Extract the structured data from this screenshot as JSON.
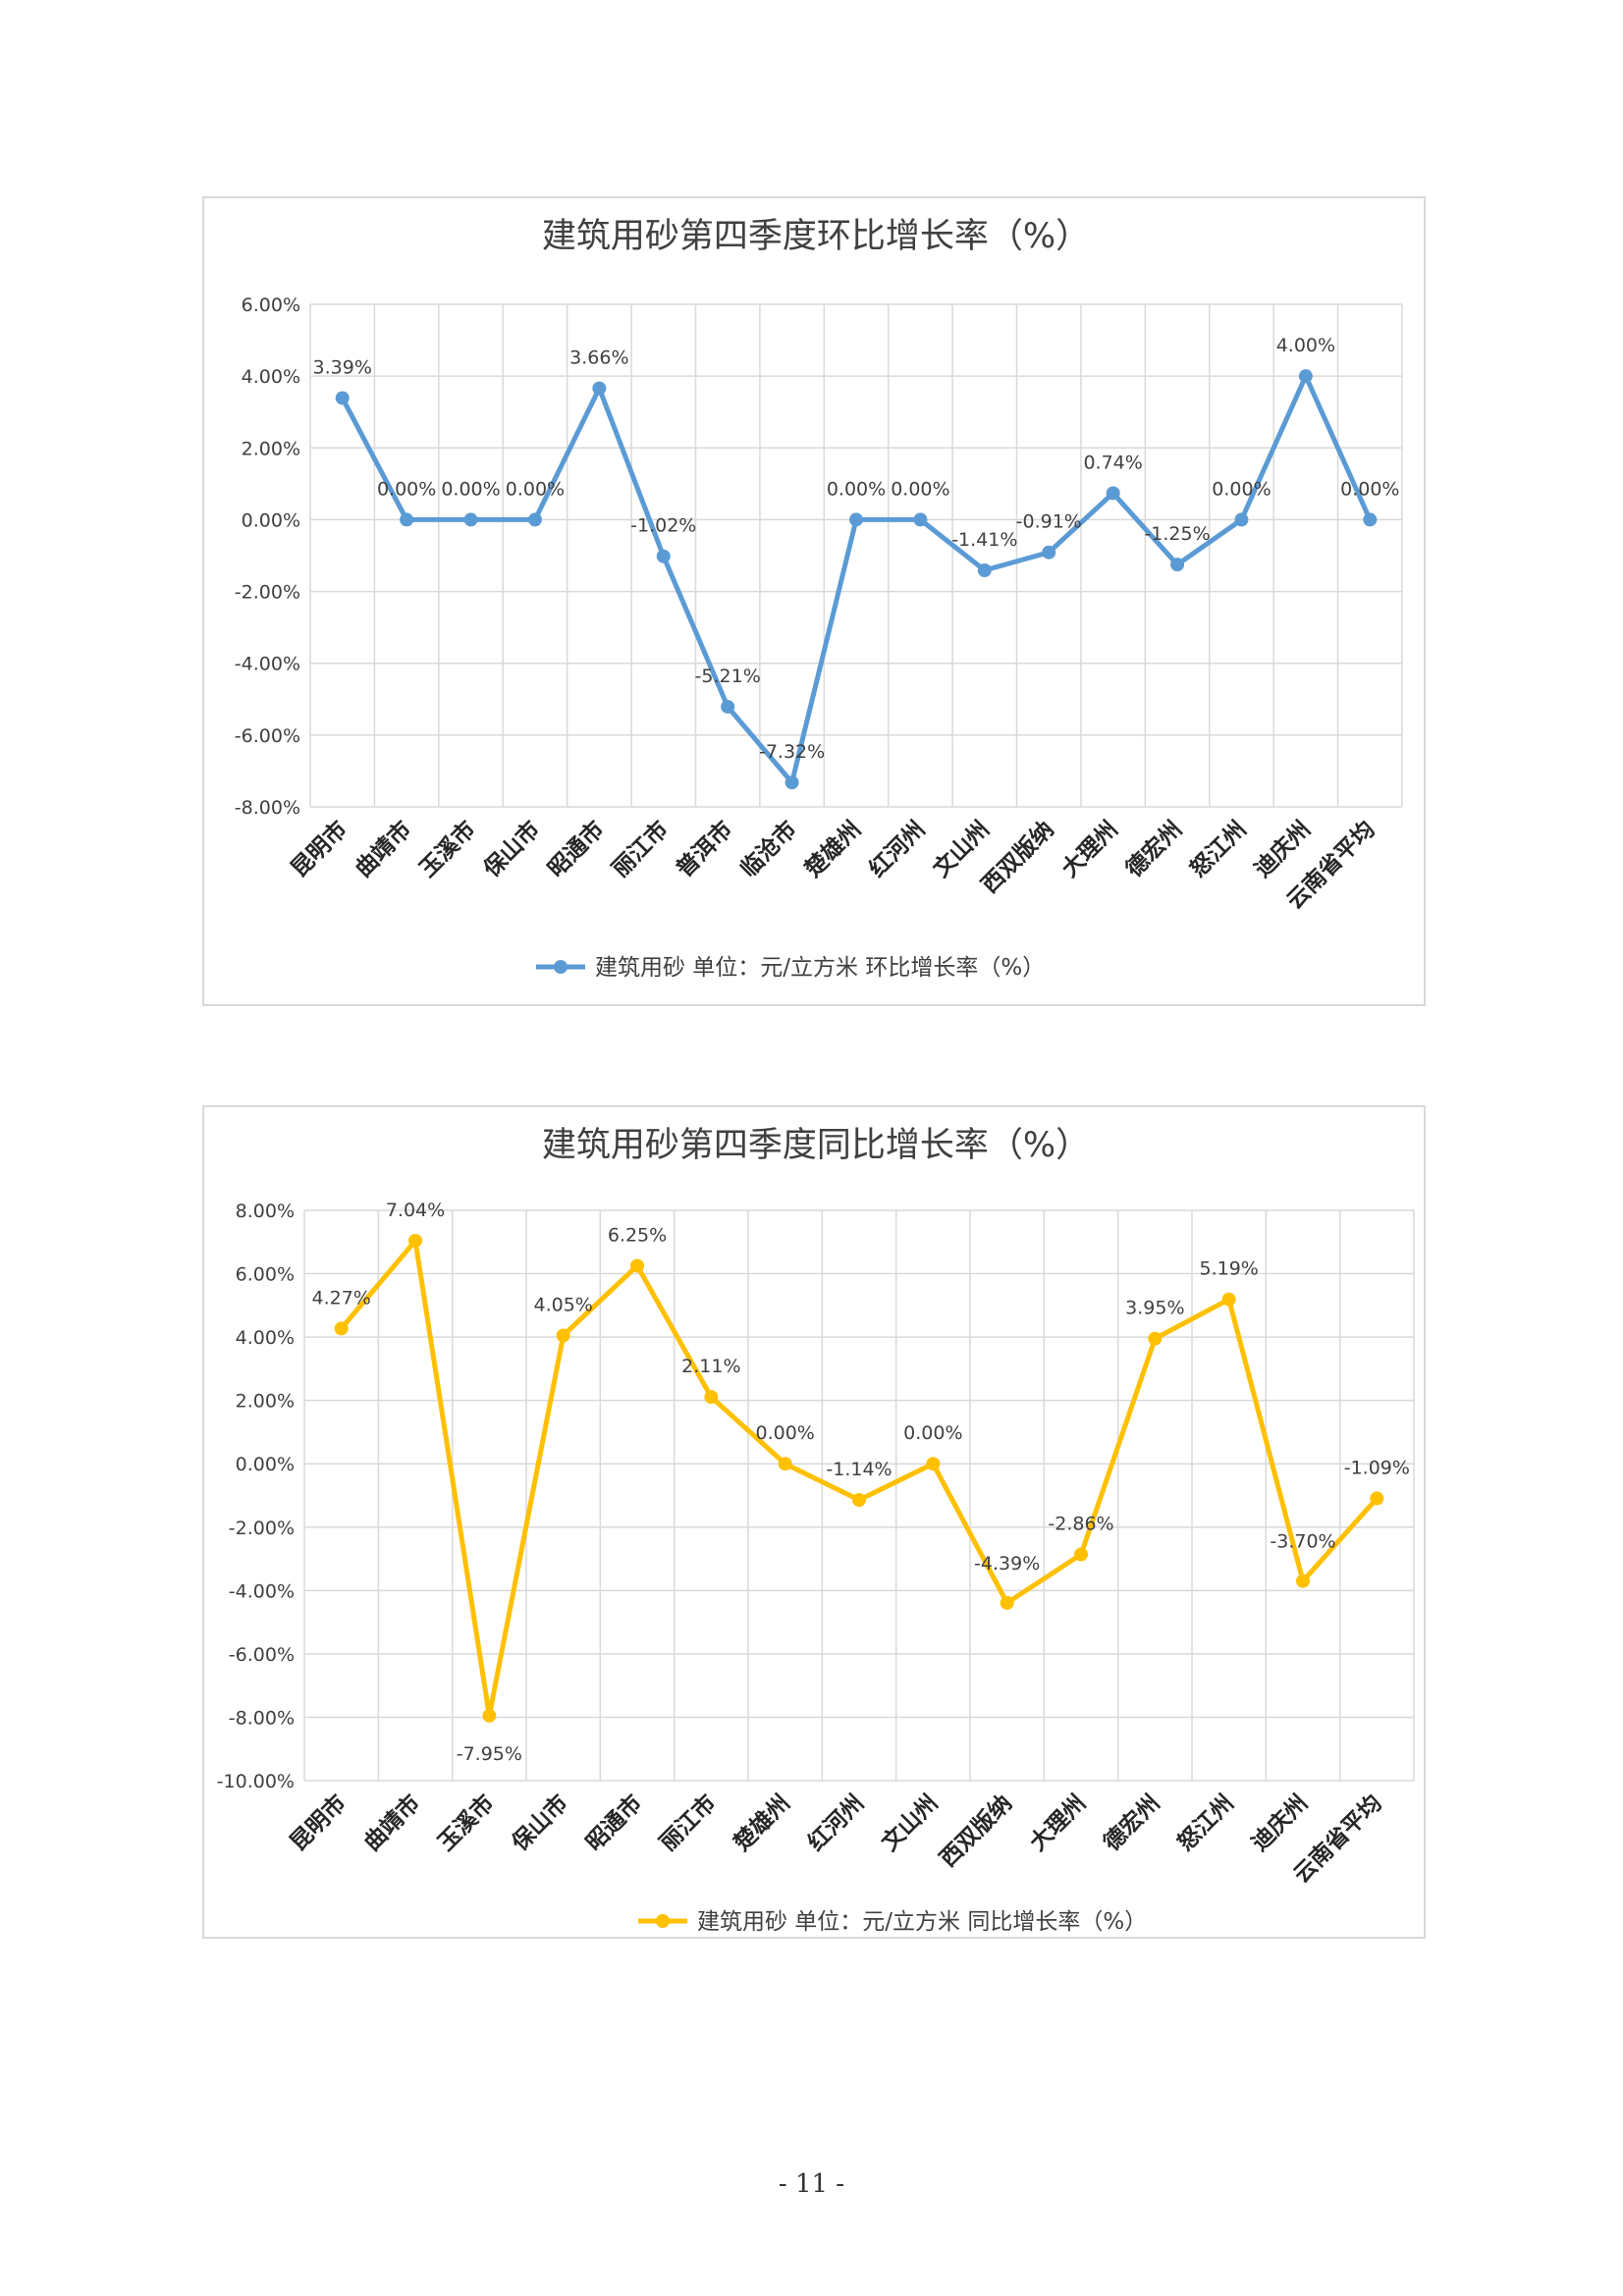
{
  "page_number": "- 11 -",
  "chart_data": [
    {
      "type": "line",
      "title": "建筑用砂第四季度环比增长率（%）",
      "xlabel": "",
      "ylabel": "",
      "categories": [
        "昆明市",
        "曲靖市",
        "玉溪市",
        "保山市",
        "昭通市",
        "丽江市",
        "普洱市",
        "临沧市",
        "楚雄州",
        "红河州",
        "文山州",
        "西双版纳",
        "大理州",
        "德宏州",
        "怒江州",
        "迪庆州",
        "云南省平均"
      ],
      "series": [
        {
          "name": "建筑用砂 单位：元/立方米 环比增长率（%）",
          "color": "#5b9bd5",
          "values": [
            3.39,
            0.0,
            0.0,
            0.0,
            3.66,
            -1.02,
            -5.21,
            -7.32,
            0.0,
            0.0,
            -1.41,
            -0.91,
            0.74,
            -1.25,
            0.0,
            4.0,
            0.0
          ],
          "data_labels": [
            "3.39%",
            "0.00%",
            "0.00%",
            "0.00%",
            "3.66%",
            "-1.02%",
            "-5.21%",
            "-7.32%",
            "0.00%",
            "0.00%",
            "-1.41%",
            "-0.91%",
            "0.74%",
            "-1.25%",
            "0.00%",
            "4.00%",
            "0.00%"
          ]
        }
      ],
      "ylim": [
        -8,
        6
      ],
      "y_ticks": [
        6,
        4,
        2,
        0,
        -2,
        -4,
        -6,
        -8
      ],
      "y_tick_labels": [
        "6.00%",
        "4.00%",
        "2.00%",
        "0.00%",
        "-2.00%",
        "-4.00%",
        "-6.00%",
        "-8.00%"
      ],
      "grid": true,
      "legend_position": "bottom"
    },
    {
      "type": "line",
      "title": "建筑用砂第四季度同比增长率（%）",
      "xlabel": "",
      "ylabel": "",
      "categories": [
        "昆明市",
        "曲靖市",
        "玉溪市",
        "保山市",
        "昭通市",
        "丽江市",
        "楚雄州",
        "红河州",
        "文山州",
        "西双版纳",
        "大理州",
        "德宏州",
        "怒江州",
        "迪庆州",
        "云南省平均"
      ],
      "series": [
        {
          "name": "建筑用砂 单位：元/立方米 同比增长率（%）",
          "color": "#ffc000",
          "values": [
            4.27,
            7.04,
            -7.95,
            4.05,
            6.25,
            2.11,
            0.0,
            -1.14,
            0.0,
            -4.39,
            -2.86,
            3.95,
            5.19,
            -3.7,
            -1.09
          ],
          "data_labels": [
            "4.27%",
            "7.04%",
            "-7.95%",
            "4.05%",
            "6.25%",
            "2.11%",
            "0.00%",
            "-1.14%",
            "0.00%",
            "-4.39%",
            "-2.86%",
            "3.95%",
            "5.19%",
            "-3.70%",
            "-1.09%"
          ]
        }
      ],
      "ylim": [
        -10,
        8
      ],
      "y_ticks": [
        8,
        6,
        4,
        2,
        0,
        -2,
        -4,
        -6,
        -8,
        -10
      ],
      "y_tick_labels": [
        "8.00%",
        "6.00%",
        "4.00%",
        "2.00%",
        "0.00%",
        "-2.00%",
        "-4.00%",
        "-6.00%",
        "-8.00%",
        "-10.00%"
      ],
      "grid": true,
      "legend_position": "bottom"
    }
  ]
}
